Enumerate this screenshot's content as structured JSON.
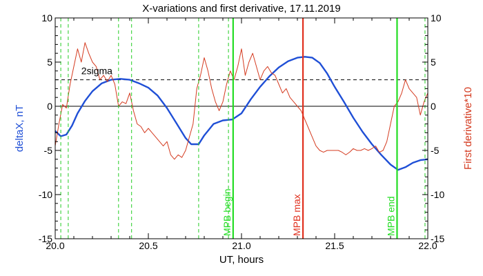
{
  "chart_data": {
    "type": "line",
    "title": "X-variations and first derivative, 17.11.2019",
    "xlabel": "UT, hours",
    "ylabel_left": "deltaX, nT",
    "ylabel_right": "First derivative*10",
    "xlim": [
      20.0,
      22.0
    ],
    "ylim_left": [
      -15,
      10
    ],
    "ylim_right": [
      -15,
      10
    ],
    "x_ticks": [
      "20.0",
      "20.5",
      "21.0",
      "21.5",
      "22.0"
    ],
    "x_tick_values": [
      20.0,
      20.5,
      21.0,
      21.5,
      22.0
    ],
    "y_ticks_left": [
      "10",
      "5",
      "0",
      "-5",
      "-10",
      "-15"
    ],
    "y_ticks_right": [
      "10",
      "5",
      "0",
      "-5",
      "-10",
      "-15"
    ],
    "y_tick_values": [
      10,
      5,
      0,
      -5,
      -10,
      -15
    ],
    "threshold": {
      "value": 3,
      "label": "2sigma",
      "style": "dashed",
      "color": "#000000"
    },
    "zero_line": {
      "value": 0,
      "color": "#000000"
    },
    "series": [
      {
        "color": "#1f4fd6",
        "x": [
          20.0,
          20.03,
          20.06,
          20.09,
          20.12,
          20.16,
          20.2,
          20.25,
          20.3,
          20.35,
          20.4,
          20.45,
          20.5,
          20.55,
          20.6,
          20.65,
          20.7,
          20.73,
          20.77,
          20.8,
          20.85,
          20.9,
          20.95,
          21.0,
          21.05,
          21.1,
          21.15,
          21.2,
          21.25,
          21.3,
          21.34,
          21.38,
          21.42,
          21.46,
          21.5,
          21.55,
          21.6,
          21.65,
          21.7,
          21.75,
          21.8,
          21.84,
          21.88,
          21.92,
          21.96,
          22.0
        ],
        "values": [
          -2.8,
          -3.4,
          -3.2,
          -2.2,
          -0.8,
          0.6,
          1.7,
          2.6,
          3.0,
          3.1,
          3.0,
          2.6,
          2.1,
          1.2,
          -0.2,
          -1.9,
          -3.6,
          -4.3,
          -4.3,
          -3.3,
          -2.0,
          -1.6,
          -1.5,
          -0.8,
          0.8,
          2.2,
          3.4,
          4.4,
          5.1,
          5.5,
          5.6,
          5.5,
          4.9,
          3.7,
          2.2,
          0.5,
          -1.3,
          -2.9,
          -4.3,
          -5.5,
          -6.6,
          -7.2,
          -6.9,
          -6.4,
          -6.1,
          -6.0
        ]
      },
      {
        "color": "#d43a1f",
        "x": [
          20.0,
          20.02,
          20.04,
          20.06,
          20.08,
          20.1,
          20.12,
          20.14,
          20.16,
          20.18,
          20.2,
          20.22,
          20.24,
          20.26,
          20.28,
          20.3,
          20.32,
          20.34,
          20.36,
          20.38,
          20.4,
          20.42,
          20.44,
          20.46,
          20.48,
          20.5,
          20.52,
          20.54,
          20.56,
          20.58,
          20.6,
          20.62,
          20.64,
          20.66,
          20.68,
          20.7,
          20.72,
          20.74,
          20.76,
          20.78,
          20.8,
          20.82,
          20.84,
          20.86,
          20.88,
          20.9,
          20.92,
          20.94,
          20.96,
          20.98,
          21.0,
          21.02,
          21.04,
          21.06,
          21.08,
          21.1,
          21.12,
          21.14,
          21.16,
          21.18,
          21.2,
          21.22,
          21.24,
          21.26,
          21.28,
          21.3,
          21.32,
          21.34,
          21.36,
          21.38,
          21.4,
          21.42,
          21.44,
          21.46,
          21.48,
          21.5,
          21.52,
          21.54,
          21.56,
          21.58,
          21.6,
          21.62,
          21.64,
          21.66,
          21.68,
          21.7,
          21.72,
          21.74,
          21.76,
          21.78,
          21.8,
          21.82,
          21.84,
          21.86,
          21.88,
          21.9,
          21.92,
          21.94,
          21.96,
          21.98,
          22.0
        ],
        "values": [
          -4.5,
          -2.0,
          0.2,
          -0.2,
          2.5,
          4.5,
          6.5,
          5.0,
          7.2,
          6.0,
          5.0,
          4.5,
          3.0,
          3.5,
          2.8,
          3.5,
          2.5,
          0.0,
          0.5,
          0.3,
          1.5,
          -0.5,
          -2.0,
          -2.3,
          -3.0,
          -2.5,
          -3.0,
          -3.5,
          -4.0,
          -4.5,
          -4.0,
          -5.5,
          -6.0,
          -5.5,
          -5.8,
          -5.0,
          -3.5,
          -2.0,
          2.0,
          3.5,
          5.5,
          4.0,
          2.0,
          0.5,
          -0.5,
          0.5,
          2.5,
          4.0,
          3.0,
          4.5,
          6.5,
          3.5,
          5.0,
          6.0,
          4.5,
          3.0,
          4.0,
          4.5,
          3.8,
          3.5,
          2.5,
          1.5,
          2.0,
          1.0,
          0.5,
          0.0,
          -0.5,
          -1.5,
          -2.5,
          -3.5,
          -4.5,
          -5.0,
          -5.2,
          -5.0,
          -5.0,
          -5.0,
          -5.0,
          -5.2,
          -5.5,
          -5.2,
          -4.8,
          -5.0,
          -5.0,
          -4.8,
          -5.0,
          -4.8,
          -4.5,
          -5.2,
          -5.0,
          -4.0,
          -2.0,
          0.0,
          0.5,
          1.5,
          3.0,
          2.0,
          1.5,
          1.0,
          -1.0,
          0.5,
          1.5
        ]
      }
    ],
    "vertical_markers": [
      {
        "x": 20.03,
        "color": "#22cc22",
        "style": "dashed",
        "label": ""
      },
      {
        "x": 20.07,
        "color": "#22cc22",
        "style": "dashed",
        "label": ""
      },
      {
        "x": 20.34,
        "color": "#22cc22",
        "style": "dashed",
        "label": ""
      },
      {
        "x": 20.41,
        "color": "#22cc22",
        "style": "dashed",
        "label": ""
      },
      {
        "x": 20.77,
        "color": "#22cc22",
        "style": "dashed",
        "label": ""
      },
      {
        "x": 20.93,
        "color": "#22cc22",
        "style": "dashed",
        "label": ""
      },
      {
        "x": 20.955,
        "color": "#22dd22",
        "style": "solid",
        "label": "MPB begin"
      },
      {
        "x": 21.33,
        "color": "#e0301e",
        "style": "solid",
        "label": "MPB max"
      },
      {
        "x": 21.835,
        "color": "#22dd22",
        "style": "solid",
        "label": "MPB end"
      },
      {
        "x": 21.985,
        "color": "#22cc22",
        "style": "dashed",
        "label": ""
      }
    ]
  }
}
